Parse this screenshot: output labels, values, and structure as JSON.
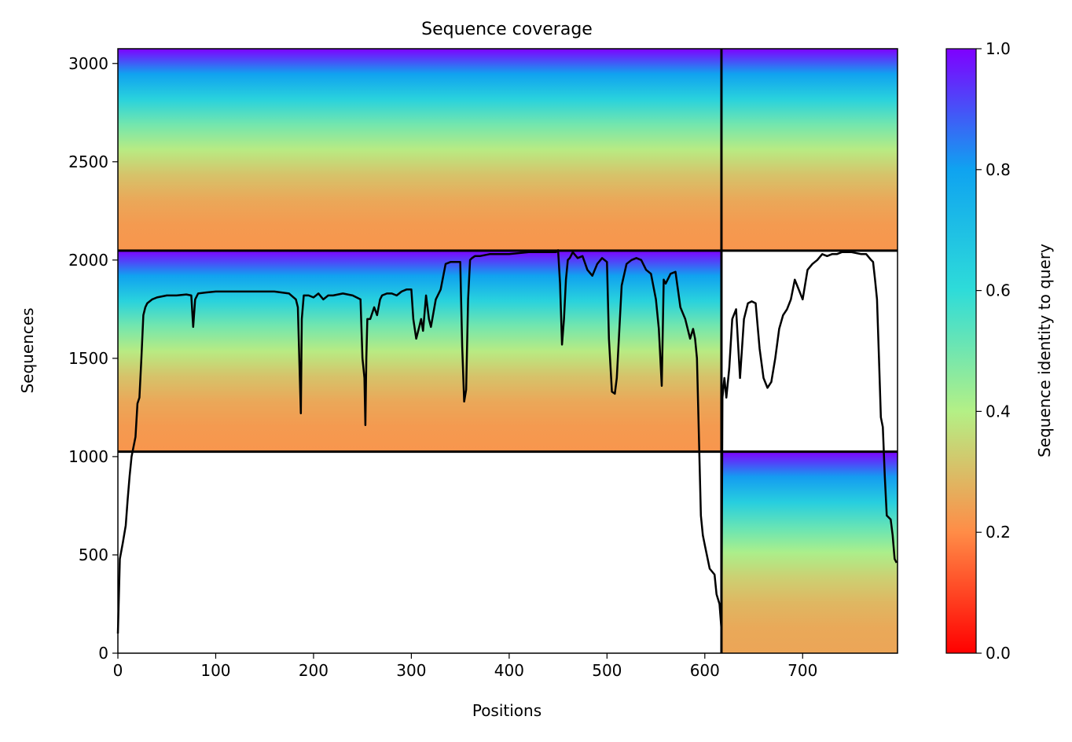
{
  "chart_data": {
    "type": "heatmap",
    "title": "Sequence coverage",
    "xlabel": "Positions",
    "ylabel": "Sequences",
    "xlim": [
      0,
      797
    ],
    "ylim": [
      0,
      3075
    ],
    "xticks": [
      0,
      100,
      200,
      300,
      400,
      500,
      600,
      700
    ],
    "yticks": [
      0,
      500,
      1000,
      1500,
      2000,
      2500,
      3000
    ],
    "grid": false,
    "colorbar": {
      "label": "Sequence identity to query",
      "range": [
        0,
        1
      ],
      "ticks": [
        "0.0",
        "0.2",
        "0.4",
        "0.6",
        "0.8",
        "1.0"
      ],
      "colormap": "rainbow_r",
      "colors": [
        "#ff0000",
        "#ff8c47",
        "#b4f086",
        "#2edcd9",
        "#0fa3f0",
        "#7f00ff"
      ]
    },
    "chain_boundary_x": 617,
    "group_boundaries_y": [
      1025,
      2048
    ],
    "blocks": [
      {
        "name": "upper-left",
        "x": [
          0,
          617
        ],
        "y": [
          2048,
          3075
        ],
        "identity_bottom": 0.22,
        "identity_top": 1.0
      },
      {
        "name": "middle-left",
        "x": [
          0,
          617
        ],
        "y": [
          1025,
          2048
        ],
        "identity_bottom": 0.22,
        "identity_top": 1.0
      },
      {
        "name": "upper-right",
        "x": [
          617,
          797
        ],
        "y": [
          2048,
          3075
        ],
        "identity_bottom": 0.22,
        "identity_top": 1.0
      },
      {
        "name": "lower-right",
        "x": [
          617,
          797
        ],
        "y": [
          0,
          1025
        ],
        "identity_bottom": 0.25,
        "identity_top": 1.0
      }
    ],
    "series": [
      {
        "type": "line",
        "color": "#000000",
        "x": [
          0,
          2,
          5,
          8,
          10,
          12,
          14,
          16,
          18,
          20,
          22,
          24,
          26,
          28,
          30,
          35,
          40,
          50,
          60,
          70,
          75,
          77,
          79,
          82,
          90,
          100,
          120,
          140,
          160,
          175,
          182,
          184,
          186,
          187,
          188,
          190,
          195,
          200,
          205,
          210,
          215,
          220,
          230,
          240,
          248,
          250,
          252,
          253,
          254,
          255,
          258,
          262,
          265,
          268,
          270,
          275,
          280,
          285,
          290,
          295,
          300,
          302,
          305,
          308,
          310,
          312,
          315,
          318,
          320,
          325,
          330,
          335,
          340,
          345,
          350,
          352,
          354,
          356,
          358,
          360,
          362,
          365,
          370,
          380,
          390,
          400,
          420,
          440,
          448,
          450,
          452,
          454,
          456,
          458,
          460,
          462,
          465,
          470,
          475,
          480,
          485,
          490,
          495,
          500,
          502,
          505,
          508,
          510,
          515,
          520,
          525,
          530,
          535,
          540,
          545,
          550,
          553,
          556,
          558,
          560,
          565,
          570,
          575,
          580,
          585,
          588,
          590,
          592,
          594,
          596,
          598,
          600,
          605,
          610,
          612,
          615,
          617,
          618,
          620,
          622,
          625,
          628,
          632,
          636,
          640,
          644,
          648,
          652,
          656,
          660,
          664,
          668,
          672,
          676,
          680,
          684,
          688,
          692,
          696,
          700,
          705,
          710,
          715,
          720,
          725,
          730,
          735,
          740,
          750,
          760,
          765,
          770,
          772,
          774,
          776,
          778,
          780,
          782,
          784,
          786,
          788,
          790,
          792,
          794,
          796
        ],
        "y": [
          100,
          480,
          560,
          650,
          780,
          900,
          1000,
          1050,
          1100,
          1270,
          1300,
          1500,
          1720,
          1760,
          1780,
          1800,
          1810,
          1820,
          1820,
          1825,
          1820,
          1660,
          1800,
          1830,
          1835,
          1840,
          1840,
          1840,
          1840,
          1830,
          1800,
          1760,
          1400,
          1220,
          1700,
          1820,
          1820,
          1810,
          1830,
          1800,
          1820,
          1820,
          1830,
          1820,
          1800,
          1500,
          1400,
          1160,
          1500,
          1700,
          1700,
          1760,
          1720,
          1800,
          1820,
          1830,
          1830,
          1820,
          1840,
          1850,
          1850,
          1700,
          1600,
          1660,
          1700,
          1640,
          1820,
          1700,
          1660,
          1800,
          1850,
          1980,
          1990,
          1990,
          1990,
          1560,
          1280,
          1340,
          1800,
          2000,
          2010,
          2020,
          2020,
          2030,
          2030,
          2030,
          2040,
          2040,
          2040,
          2050,
          1880,
          1570,
          1700,
          1900,
          2000,
          2010,
          2040,
          2010,
          2020,
          1950,
          1920,
          1980,
          2010,
          1990,
          1600,
          1330,
          1320,
          1400,
          1870,
          1980,
          2000,
          2010,
          2000,
          1950,
          1930,
          1800,
          1650,
          1360,
          1900,
          1880,
          1930,
          1940,
          1760,
          1700,
          1600,
          1650,
          1600,
          1500,
          1100,
          700,
          600,
          550,
          430,
          400,
          300,
          250,
          120,
          1300,
          1400,
          1300,
          1450,
          1700,
          1750,
          1400,
          1700,
          1780,
          1790,
          1780,
          1550,
          1400,
          1350,
          1380,
          1500,
          1650,
          1720,
          1750,
          1800,
          1900,
          1850,
          1800,
          1950,
          1980,
          2000,
          2030,
          2020,
          2030,
          2030,
          2040,
          2040,
          2030,
          2030,
          2000,
          1990,
          1900,
          1800,
          1500,
          1200,
          1150,
          900,
          700,
          690,
          680,
          600,
          480,
          460
        ]
      }
    ]
  }
}
